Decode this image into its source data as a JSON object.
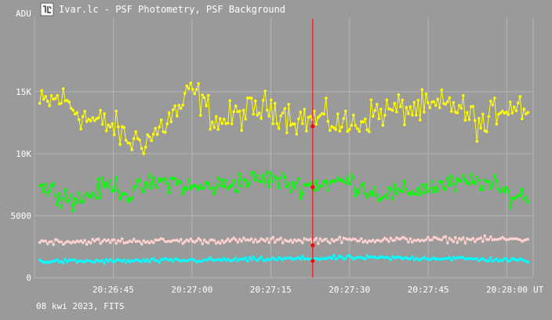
{
  "window": {
    "title": "Ivar.lc - PSF Photometry, PSF Background",
    "icon": "app-icon"
  },
  "footer": {
    "date_text": "08 kwi 2023, FITS"
  },
  "chart_data": {
    "type": "line",
    "title": "Ivar.lc - PSF Photometry, PSF Background",
    "ylabel": "ADU",
    "xlabel": "UT",
    "x_start": "20:26:30",
    "x_end": "20:28:05",
    "x_ticks": [
      "20:26:45",
      "20:27:00",
      "20:27:15",
      "20:27:30",
      "20:27:45",
      "20:28:00"
    ],
    "y_ticks": [
      "0",
      "5000",
      "10K",
      "15K"
    ],
    "ylim": [
      0,
      21000
    ],
    "grid": true,
    "cursor_x": "20:27:23",
    "colors": {
      "background": "#9a9a9a",
      "grid": "#b4b4b4",
      "cursor": "#ff0000",
      "text": "#ffffff"
    },
    "series": [
      {
        "color": "#ffff00",
        "center": 13200,
        "noise": 1300,
        "cursor_value": 12200,
        "anchors": [
          [
            0,
            13800
          ],
          [
            5,
            14500
          ],
          [
            10,
            12800
          ],
          [
            15,
            12200
          ],
          [
            18,
            11000
          ],
          [
            22,
            11200
          ],
          [
            28,
            13800
          ],
          [
            30,
            15200
          ],
          [
            35,
            12500
          ],
          [
            40,
            13300
          ],
          [
            45,
            13800
          ],
          [
            50,
            12800
          ],
          [
            55,
            12800
          ],
          [
            60,
            12200
          ],
          [
            65,
            13300
          ],
          [
            70,
            13600
          ],
          [
            75,
            13600
          ],
          [
            80,
            14000
          ],
          [
            82,
            13300
          ],
          [
            86,
            12000
          ],
          [
            88,
            13700
          ],
          [
            91,
            13900
          ]
        ]
      },
      {
        "color": "#00ff00",
        "center": 7200,
        "noise": 800,
        "cursor_value": 7300,
        "anchors": [
          [
            0,
            7500
          ],
          [
            5,
            6800
          ],
          [
            8,
            6200
          ],
          [
            12,
            7000
          ],
          [
            15,
            7600
          ],
          [
            18,
            6600
          ],
          [
            21,
            7400
          ],
          [
            26,
            7800
          ],
          [
            30,
            7200
          ],
          [
            35,
            7400
          ],
          [
            40,
            7800
          ],
          [
            45,
            8000
          ],
          [
            50,
            7400
          ],
          [
            55,
            7600
          ],
          [
            60,
            7800
          ],
          [
            65,
            6800
          ],
          [
            70,
            6800
          ],
          [
            75,
            7300
          ],
          [
            80,
            7500
          ],
          [
            85,
            7800
          ],
          [
            88,
            7200
          ],
          [
            91,
            6600
          ]
        ]
      },
      {
        "color": "#ffd0d0",
        "center": 3000,
        "noise": 230,
        "cursor_value": 2600,
        "anchors": [
          [
            0,
            2900
          ],
          [
            45,
            3000
          ],
          [
            91,
            3100
          ]
        ]
      },
      {
        "color": "#00ffff",
        "center": 1400,
        "noise": 170,
        "cursor_value": 1350,
        "anchors": [
          [
            0,
            1300
          ],
          [
            20,
            1350
          ],
          [
            40,
            1450
          ],
          [
            60,
            1600
          ],
          [
            80,
            1550
          ],
          [
            91,
            1400
          ]
        ]
      }
    ]
  }
}
